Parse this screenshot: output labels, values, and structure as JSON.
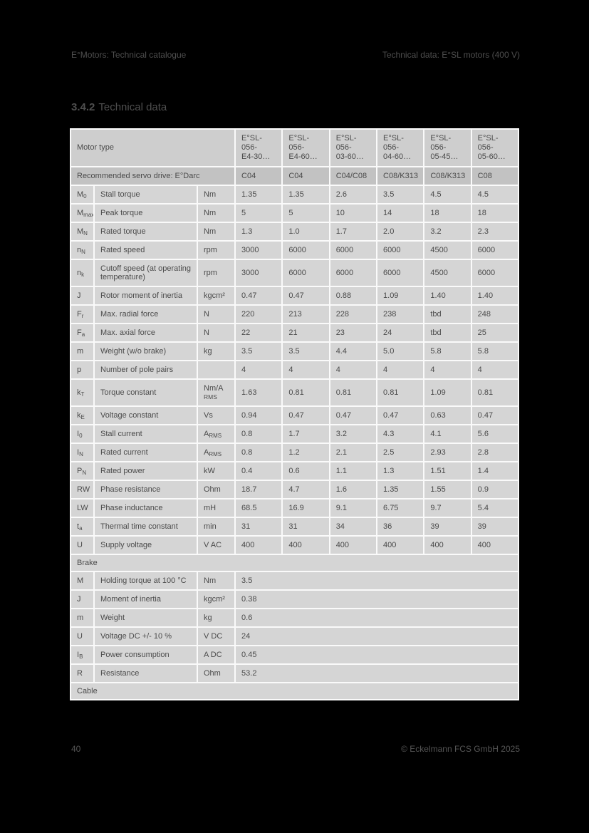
{
  "page": {
    "header_left": "E°Motors: Technical catalogue",
    "header_right": "Technical data: E°SL motors (400 V)",
    "section_number": "3.4.2",
    "section_title": "Technical data",
    "footer_page": "40",
    "footer_copyright": "© Eckelmann FCS GmbH 2025"
  },
  "colors": {
    "page_bg": "#000000",
    "grid": "#fafafa",
    "header_row_bg": "#cecece",
    "subheader_row_bg": "#c2c2c2",
    "body_row_bg": "#d5d5d5",
    "cell_text": "#4b4b4b",
    "page_text": "#4f4f4f"
  },
  "table": {
    "corner_label": "Motor type",
    "motor_columns": [
      {
        "line1": "E°SL-056-",
        "line2": "E4-30…"
      },
      {
        "line1": "E°SL-056-",
        "line2": "E4-60…"
      },
      {
        "line1": "E°SL-056-",
        "line2": "03-60…"
      },
      {
        "line1": "E°SL-056-",
        "line2": "04-60…"
      },
      {
        "line1": "E°SL-056-",
        "line2": "05-45…"
      },
      {
        "line1": "E°SL-056-",
        "line2": "05-60…"
      }
    ],
    "subheader": {
      "label": "Recommended servo drive: E°Darc",
      "values": [
        "C04",
        "C04",
        "C04/C08",
        "C08/K313",
        "C08/K313",
        "C08"
      ]
    },
    "rows": [
      {
        "type": "data",
        "sym": "M",
        "sub": "0",
        "desc": "Stall torque",
        "unit": "Nm",
        "values": [
          "1.35",
          "1.35",
          "2.6",
          "3.5",
          "4.5",
          "4.5"
        ]
      },
      {
        "type": "data",
        "sym": "M",
        "sub": "max",
        "desc": "Peak torque",
        "unit": "Nm",
        "values": [
          "5",
          "5",
          "10",
          "14",
          "18",
          "18"
        ]
      },
      {
        "type": "data",
        "sym": "M",
        "sub": "N",
        "desc": "Rated torque",
        "unit": "Nm",
        "values": [
          "1.3",
          "1.0",
          "1.7",
          "2.0",
          "3.2",
          "2.3"
        ]
      },
      {
        "type": "data",
        "sym": "n",
        "sub": "N",
        "desc": "Rated speed",
        "unit": "rpm",
        "values": [
          "3000",
          "6000",
          "6000",
          "6000",
          "4500",
          "6000"
        ]
      },
      {
        "type": "data",
        "sym": "n",
        "sub": "k",
        "desc": "Cutoff speed (at operating temperature)",
        "unit": "rpm",
        "values": [
          "3000",
          "6000",
          "6000",
          "6000",
          "4500",
          "6000"
        ]
      },
      {
        "type": "data",
        "sym": "J",
        "sub": "",
        "desc": "Rotor moment of inertia",
        "unit": "kgcm²",
        "values": [
          "0.47",
          "0.47",
          "0.88",
          "1.09",
          "1.40",
          "1.40"
        ]
      },
      {
        "type": "data",
        "sym": "F",
        "sub": "r",
        "desc": "Max. radial force",
        "unit": "N",
        "values": [
          "220",
          "213",
          "228",
          "238",
          "tbd",
          "248"
        ]
      },
      {
        "type": "data",
        "sym": "F",
        "sub": "a",
        "desc": "Max. axial force",
        "unit": "N",
        "values": [
          "22",
          "21",
          "23",
          "24",
          "tbd",
          "25"
        ]
      },
      {
        "type": "data",
        "sym": "m",
        "sub": "",
        "desc": "Weight (w/o brake)",
        "unit": "kg",
        "values": [
          "3.5",
          "3.5",
          "4.4",
          "5.0",
          "5.8",
          "5.8"
        ]
      },
      {
        "type": "data",
        "sym": "p",
        "sub": "",
        "desc": "Number of pole pairs",
        "unit": "",
        "values": [
          "4",
          "4",
          "4",
          "4",
          "4",
          "4"
        ]
      },
      {
        "type": "data",
        "sym": "k",
        "sub": "T",
        "desc": "Torque constant",
        "unit": "Nm/A",
        "unit_sub": "RMS",
        "unit_sub_mode": "below",
        "values": [
          "1.63",
          "0.81",
          "0.81",
          "0.81",
          "1.09",
          "0.81"
        ]
      },
      {
        "type": "data",
        "sym": "k",
        "sub": "E",
        "desc": "Voltage constant",
        "unit": "Vs",
        "values": [
          "0.94",
          "0.47",
          "0.47",
          "0.47",
          "0.63",
          "0.47"
        ]
      },
      {
        "type": "data",
        "sym": "I",
        "sub": "0",
        "desc": "Stall current",
        "unit": "A",
        "unit_sub": "RMS",
        "unit_sub_mode": "inline",
        "values": [
          "0.8",
          "1.7",
          "3.2",
          "4.3",
          "4.1",
          "5.6"
        ]
      },
      {
        "type": "data",
        "sym": "I",
        "sub": "N",
        "desc": "Rated current",
        "unit": "A",
        "unit_sub": "RMS",
        "unit_sub_mode": "inline",
        "values": [
          "0.8",
          "1.2",
          "2.1",
          "2.5",
          "2.93",
          "2.8"
        ]
      },
      {
        "type": "data",
        "sym": "P",
        "sub": "N",
        "desc": "Rated power",
        "unit": "kW",
        "values": [
          "0.4",
          "0.6",
          "1.1",
          "1.3",
          "1.51",
          "1.4"
        ]
      },
      {
        "type": "data",
        "sym": "RW",
        "sub": "",
        "desc": "Phase resistance",
        "unit": "Ohm",
        "values": [
          "18.7",
          "4.7",
          "1.6",
          "1.35",
          "1.55",
          "0.9"
        ]
      },
      {
        "type": "data",
        "sym": "LW",
        "sub": "",
        "desc": "Phase inductance",
        "unit": "mH",
        "values": [
          "68.5",
          "16.9",
          "9.1",
          "6.75",
          "9.7",
          "5.4"
        ]
      },
      {
        "type": "data",
        "sym": "t",
        "sub": "a",
        "desc": "Thermal time constant",
        "unit": "min",
        "values": [
          "31",
          "31",
          "34",
          "36",
          "39",
          "39"
        ]
      },
      {
        "type": "data",
        "sym": "U",
        "sub": "",
        "desc": "Supply voltage",
        "unit": "V AC",
        "values": [
          "400",
          "400",
          "400",
          "400",
          "400",
          "400"
        ]
      },
      {
        "type": "section",
        "label": "Brake"
      },
      {
        "type": "data",
        "sym": "M",
        "sub": "",
        "desc": "Holding torque at 100 °C",
        "unit": "Nm",
        "span_value": "3.5"
      },
      {
        "type": "data",
        "sym": "J",
        "sub": "",
        "desc": "Moment of inertia",
        "unit": "kgcm²",
        "span_value": "0.38"
      },
      {
        "type": "data",
        "sym": "m",
        "sub": "",
        "desc": "Weight",
        "unit": "kg",
        "span_value": "0.6"
      },
      {
        "type": "data",
        "sym": "U",
        "sub": "",
        "desc": "Voltage DC +/- 10 %",
        "unit": "V DC",
        "span_value": "24"
      },
      {
        "type": "data",
        "sym": "I",
        "sub": "B",
        "desc": "Power consumption",
        "unit": "A DC",
        "span_value": "0.45"
      },
      {
        "type": "data",
        "sym": "R",
        "sub": "",
        "desc": "Resistance",
        "unit": "Ohm",
        "span_value": "53.2"
      },
      {
        "type": "section",
        "label": "Cable"
      }
    ]
  }
}
